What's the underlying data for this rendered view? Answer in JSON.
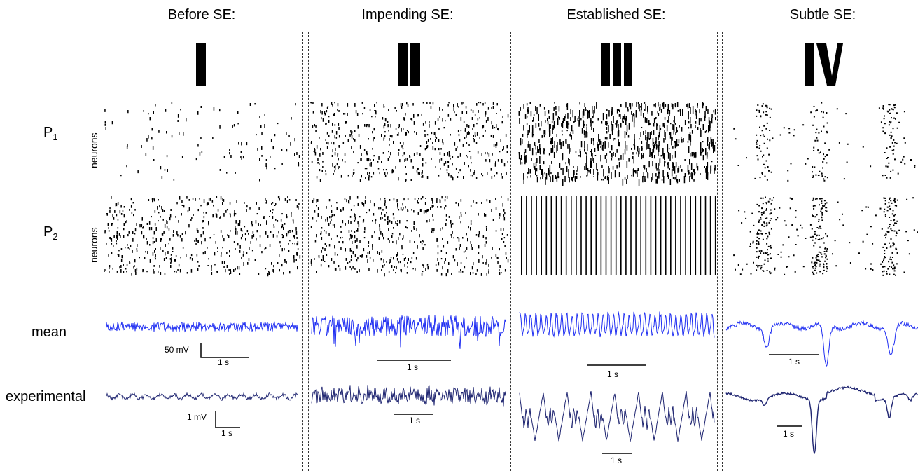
{
  "stages": [
    {
      "title": "Before SE:",
      "numeral": "I"
    },
    {
      "title": "Impending SE:",
      "numeral": "II"
    },
    {
      "title": "Established SE:",
      "numeral": "III"
    },
    {
      "title": "Subtle SE:",
      "numeral": "IV"
    }
  ],
  "rows": {
    "p1": {
      "letter": "P",
      "sub": "1"
    },
    "p2": {
      "letter": "P",
      "sub": "2"
    },
    "mean": "mean",
    "experimental": "experimental",
    "neurons": "neurons"
  },
  "scale_bars": {
    "mean_voltage": "50 mV",
    "experimental_voltage": "1 mV",
    "time": "1 s"
  },
  "colors": {
    "mean_trace": "#1f2ef2",
    "experimental_trace": "#1e2470",
    "raster": "#000000"
  }
}
